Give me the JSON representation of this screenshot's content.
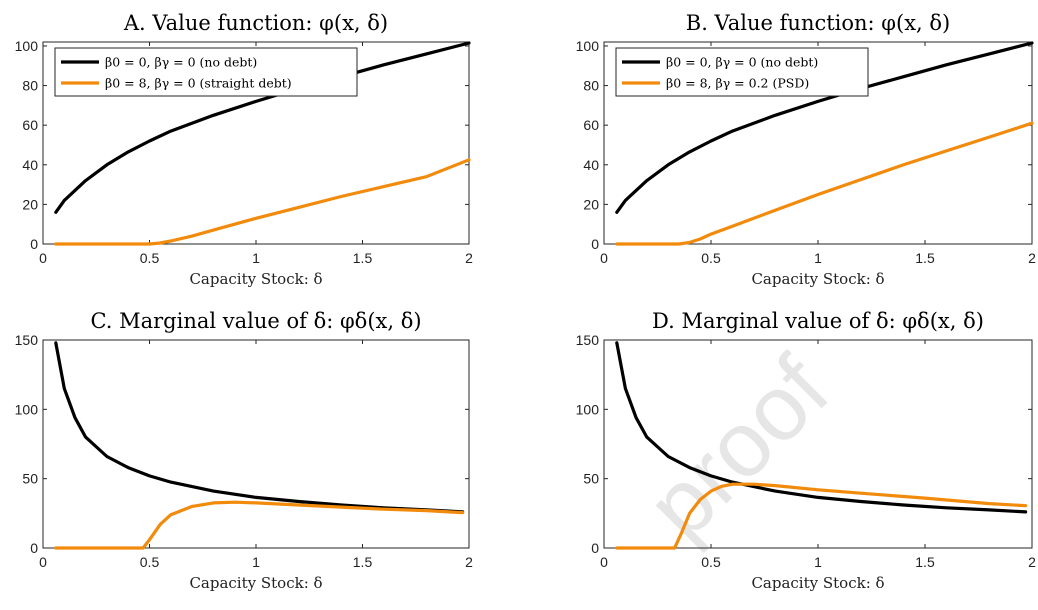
{
  "watermark": "proof",
  "colors": {
    "no_debt": "#000000",
    "debt": "#f28a0c"
  },
  "chart_data": [
    {
      "type": "line",
      "title": "A. Value function: φ(x, δ)",
      "xlabel": "Capacity Stock: δ",
      "ylabel": "",
      "xlim": [
        0,
        2
      ],
      "ylim": [
        0,
        102
      ],
      "xticks": [
        0,
        0.5,
        1,
        1.5,
        2
      ],
      "xtick_labels": [
        "0",
        "0.5",
        "1",
        "1.5",
        "2"
      ],
      "yticks": [
        0,
        20,
        40,
        60,
        80,
        100
      ],
      "ytick_labels": [
        "0",
        "20",
        "40",
        "60",
        "80",
        "100"
      ],
      "legend_position": "top-left",
      "series": [
        {
          "name": "β0 = 0, βγ = 0 (no debt)",
          "color": "#000000",
          "x": [
            0.06,
            0.1,
            0.2,
            0.3,
            0.4,
            0.5,
            0.6,
            0.8,
            1.0,
            1.2,
            1.4,
            1.6,
            1.8,
            2.0
          ],
          "y": [
            16,
            22,
            32,
            40,
            46.5,
            52,
            57,
            65,
            72,
            78.5,
            84.5,
            90.5,
            96,
            101.5
          ]
        },
        {
          "name": "β0 = 8, βγ = 0 (straight debt)",
          "color": "#f28a0c",
          "x": [
            0.06,
            0.2,
            0.4,
            0.5,
            0.55,
            0.6,
            0.7,
            0.8,
            1.0,
            1.2,
            1.4,
            1.6,
            1.8,
            2.0
          ],
          "y": [
            0,
            0,
            0,
            0,
            0.5,
            1.5,
            4,
            7,
            13,
            18.5,
            24,
            29,
            34,
            42.5
          ]
        }
      ]
    },
    {
      "type": "line",
      "title": "B. Value function: φ(x, δ)",
      "xlabel": "Capacity Stock: δ",
      "ylabel": "",
      "xlim": [
        0,
        2
      ],
      "ylim": [
        0,
        102
      ],
      "xticks": [
        0,
        0.5,
        1,
        1.5,
        2
      ],
      "xtick_labels": [
        "0",
        "0.5",
        "1",
        "1.5",
        "2"
      ],
      "yticks": [
        0,
        20,
        40,
        60,
        80,
        100
      ],
      "ytick_labels": [
        "0",
        "20",
        "40",
        "60",
        "80",
        "100"
      ],
      "legend_position": "top-left",
      "series": [
        {
          "name": "β0 = 0, βγ = 0 (no debt)",
          "color": "#000000",
          "x": [
            0.06,
            0.1,
            0.2,
            0.3,
            0.4,
            0.5,
            0.6,
            0.8,
            1.0,
            1.2,
            1.4,
            1.6,
            1.8,
            2.0
          ],
          "y": [
            16,
            22,
            32,
            40,
            46.5,
            52,
            57,
            65,
            72,
            78.5,
            84.5,
            90.5,
            96,
            101.5
          ]
        },
        {
          "name": "β0 = 8, βγ = 0.2 (PSD)",
          "color": "#f28a0c",
          "x": [
            0.06,
            0.2,
            0.35,
            0.4,
            0.45,
            0.5,
            0.6,
            0.8,
            1.0,
            1.2,
            1.4,
            1.6,
            1.8,
            2.0
          ],
          "y": [
            0,
            0,
            0,
            0.8,
            2.5,
            5,
            9,
            17,
            25,
            32.5,
            40,
            47,
            54,
            61
          ]
        }
      ]
    },
    {
      "type": "line",
      "title": "C. Marginal value of δ: φδ(x, δ)",
      "xlabel": "Capacity Stock: δ",
      "ylabel": "",
      "xlim": [
        0,
        2
      ],
      "ylim": [
        0,
        150
      ],
      "xticks": [
        0,
        0.5,
        1,
        1.5,
        2
      ],
      "xtick_labels": [
        "0",
        "0.5",
        "1",
        "1.5",
        "2"
      ],
      "yticks": [
        0,
        50,
        100,
        150
      ],
      "ytick_labels": [
        "0",
        "50",
        "100",
        "150"
      ],
      "series": [
        {
          "name": "β0 = 0, βγ = 0 (no debt)",
          "color": "#000000",
          "x": [
            0.06,
            0.1,
            0.15,
            0.2,
            0.3,
            0.4,
            0.5,
            0.6,
            0.8,
            1.0,
            1.2,
            1.4,
            1.6,
            1.8,
            1.97
          ],
          "y": [
            148,
            115,
            94,
            80,
            66,
            58,
            52,
            47.5,
            41,
            36.5,
            33.5,
            31,
            29,
            27.5,
            26
          ]
        },
        {
          "name": "β0 = 8, βγ = 0 (straight debt)",
          "color": "#f28a0c",
          "x": [
            0.06,
            0.3,
            0.47,
            0.5,
            0.55,
            0.6,
            0.7,
            0.8,
            0.9,
            1.0,
            1.2,
            1.4,
            1.6,
            1.8,
            1.97
          ],
          "y": [
            0,
            0,
            0,
            6,
            17,
            24,
            30,
            32.5,
            33,
            32.5,
            31,
            29.5,
            28,
            27,
            25.5
          ]
        }
      ]
    },
    {
      "type": "line",
      "title": "D. Marginal value of δ: φδ(x, δ)",
      "xlabel": "Capacity Stock: δ",
      "ylabel": "",
      "xlim": [
        0,
        2
      ],
      "ylim": [
        0,
        150
      ],
      "xticks": [
        0,
        0.5,
        1,
        1.5,
        2
      ],
      "xtick_labels": [
        "0",
        "0.5",
        "1",
        "1.5",
        "2"
      ],
      "yticks": [
        0,
        50,
        100,
        150
      ],
      "ytick_labels": [
        "0",
        "50",
        "100",
        "150"
      ],
      "series": [
        {
          "name": "β0 = 0, βγ = 0 (no debt)",
          "color": "#000000",
          "x": [
            0.06,
            0.1,
            0.15,
            0.2,
            0.3,
            0.4,
            0.5,
            0.6,
            0.8,
            1.0,
            1.2,
            1.4,
            1.6,
            1.8,
            1.97
          ],
          "y": [
            148,
            115,
            94,
            80,
            66,
            58,
            52,
            47.5,
            41,
            36.5,
            33.5,
            31,
            29,
            27.5,
            26
          ]
        },
        {
          "name": "β0 = 8, βγ = 0.2 (PSD)",
          "color": "#f28a0c",
          "x": [
            0.06,
            0.2,
            0.33,
            0.36,
            0.4,
            0.45,
            0.5,
            0.55,
            0.6,
            0.7,
            0.8,
            1.0,
            1.2,
            1.5,
            1.8,
            1.97
          ],
          "y": [
            0,
            0,
            0,
            10,
            25,
            35,
            41,
            44.5,
            46,
            46,
            45,
            42,
            39.5,
            36,
            32,
            30.5
          ]
        }
      ]
    }
  ]
}
